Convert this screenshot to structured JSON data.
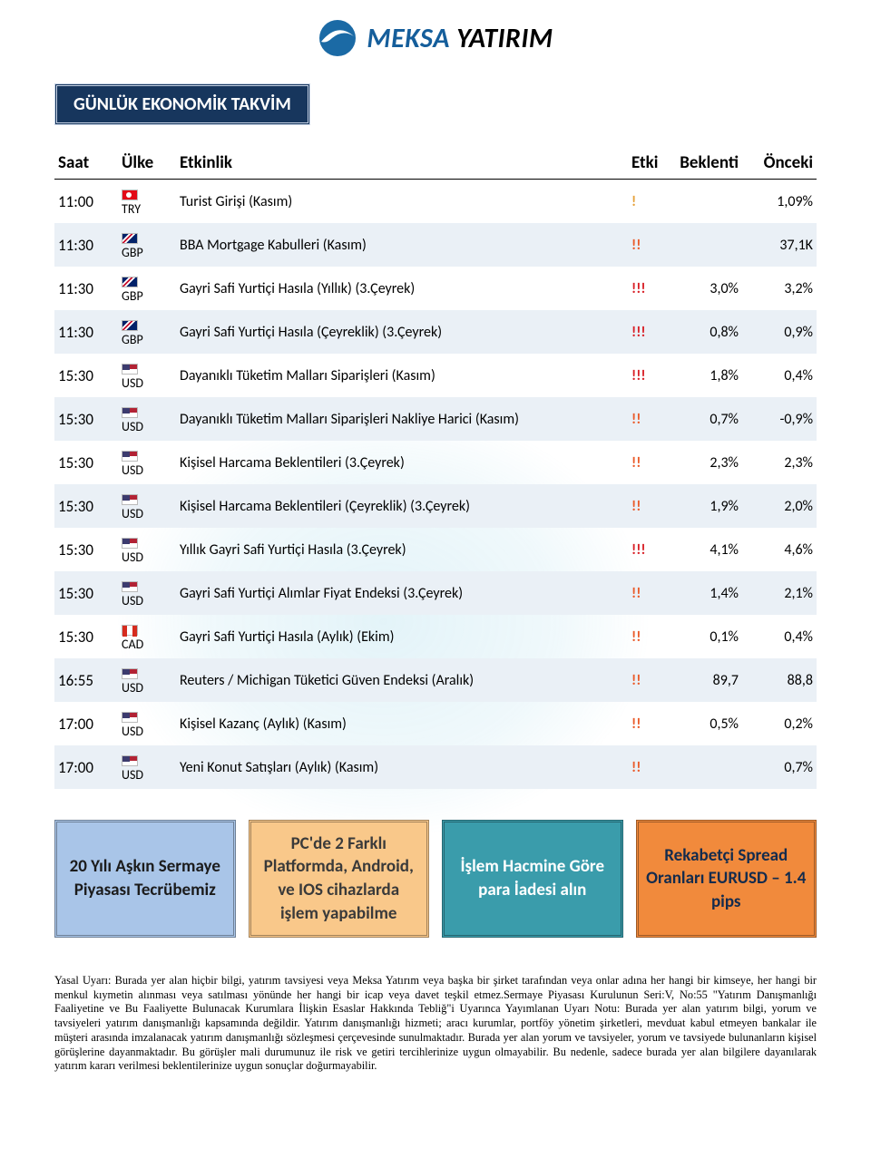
{
  "logo": {
    "brand1": "MEKSA",
    "brand2": "YATIRIM"
  },
  "title": "GÜNLÜK EKONOMİK TAKVİM",
  "columns": {
    "time": "Saat",
    "country": "Ülke",
    "event": "Etkinlik",
    "impact": "Etki",
    "forecast": "Beklenti",
    "previous": "Önceki"
  },
  "rows": [
    {
      "time": "11:00",
      "ccy": "TRY",
      "flag": "try",
      "event": "Turist Girişi (Kasım)",
      "impact": 1,
      "forecast": "",
      "previous": "1,09%"
    },
    {
      "time": "11:30",
      "ccy": "GBP",
      "flag": "gbp",
      "event": "BBA Mortgage Kabulleri (Kasım)",
      "impact": 2,
      "forecast": "",
      "previous": "37,1K"
    },
    {
      "time": "11:30",
      "ccy": "GBP",
      "flag": "gbp",
      "event": "Gayri Safi Yurtiçi Hasıla (Yıllık) (3.Çeyrek)",
      "impact": 3,
      "forecast": "3,0%",
      "previous": "3,2%"
    },
    {
      "time": "11:30",
      "ccy": "GBP",
      "flag": "gbp",
      "event": "Gayri Safi Yurtiçi Hasıla (Çeyreklik) (3.Çeyrek)",
      "impact": 3,
      "forecast": "0,8%",
      "previous": "0,9%"
    },
    {
      "time": "15:30",
      "ccy": "USD",
      "flag": "usd",
      "event": "Dayanıklı Tüketim Malları Siparişleri (Kasım)",
      "impact": 3,
      "forecast": "1,8%",
      "previous": "0,4%"
    },
    {
      "time": "15:30",
      "ccy": "USD",
      "flag": "usd",
      "event": "Dayanıklı Tüketim Malları Siparişleri Nakliye Harici (Kasım)",
      "impact": 2,
      "forecast": "0,7%",
      "previous": "-0,9%"
    },
    {
      "time": "15:30",
      "ccy": "USD",
      "flag": "usd",
      "event": "Kişisel Harcama Beklentileri (3.Çeyrek)",
      "impact": 2,
      "forecast": "2,3%",
      "previous": "2,3%"
    },
    {
      "time": "15:30",
      "ccy": "USD",
      "flag": "usd",
      "event": "Kişisel Harcama Beklentileri (Çeyreklik) (3.Çeyrek)",
      "impact": 2,
      "forecast": "1,9%",
      "previous": "2,0%"
    },
    {
      "time": "15:30",
      "ccy": "USD",
      "flag": "usd",
      "event": "Yıllık Gayri Safi Yurtiçi Hasıla (3.Çeyrek)",
      "impact": 3,
      "forecast": "4,1%",
      "previous": "4,6%"
    },
    {
      "time": "15:30",
      "ccy": "USD",
      "flag": "usd",
      "event": "Gayri Safi Yurtiçi Alımlar Fiyat Endeksi (3.Çeyrek)",
      "impact": 2,
      "forecast": "1,4%",
      "previous": "2,1%"
    },
    {
      "time": "15:30",
      "ccy": "CAD",
      "flag": "cad",
      "event": "Gayri Safi Yurtiçi Hasıla (Aylık) (Ekim)",
      "impact": 2,
      "forecast": "0,1%",
      "previous": "0,4%"
    },
    {
      "time": "16:55",
      "ccy": "USD",
      "flag": "usd",
      "event": "Reuters / Michigan Tüketici Güven Endeksi (Aralık)",
      "impact": 2,
      "forecast": "89,7",
      "previous": "88,8"
    },
    {
      "time": "17:00",
      "ccy": "USD",
      "flag": "usd",
      "event": "Kişisel Kazanç (Aylık) (Kasım)",
      "impact": 2,
      "forecast": "0,5%",
      "previous": "0,2%"
    },
    {
      "time": "17:00",
      "ccy": "USD",
      "flag": "usd",
      "event": "Yeni Konut Satışları (Aylık) (Kasım)",
      "impact": 2,
      "forecast": "",
      "previous": "0,7%"
    }
  ],
  "promos": [
    "20 Yılı Aşkın Sermaye Piyasası Tecrübemiz",
    "PC'de 2 Farklı Platformda, Android, ve IOS cihazlarda işlem yapabilme",
    "İşlem Hacmine Göre para İadesi alın",
    "Rekabetçi Spread Oranları EURUSD – 1.4 pips"
  ],
  "disclaimer": {
    "label": "Yasal Uyarı:",
    "text": "Burada yer alan hiçbir bilgi, yatırım tavsiyesi veya Meksa Yatırım veya başka bir şirket tarafından veya onlar adına her hangi bir kimseye, her hangi bir menkul kıymetin alınması veya satılması yönünde her hangi bir icap veya davet teşkil etmez.Sermaye Piyasası Kurulunun Seri:V, No:55 \"Yatırım Danışmanlığı Faaliyetine ve Bu Faaliyette Bulunacak Kurumlara İlişkin Esaslar Hakkında Tebliğ\"i Uyarınca Yayımlanan Uyarı Notu: Burada yer alan yatırım bilgi, yorum ve tavsiyeleri yatırım danışmanlığı kapsamında değildir. Yatırım danışmanlığı hizmeti; aracı kurumlar, portföy yönetim şirketleri, mevduat kabul etmeyen bankalar ile müşteri arasında imzalanacak yatırım danışmanlığı sözleşmesi çerçevesinde sunulmaktadır. Burada yer alan yorum ve tavsiyeler, yorum ve tavsiyede bulunanların kişisel görüşlerine dayanmaktadır. Bu görüşler mali durumunuz ile risk ve getiri tercihlerinize uygun olmayabilir. Bu nedenle, sadece burada yer alan bilgilere dayanılarak yatırım kararı verilmesi beklentilerinize uygun sonuçlar doğurmayabilir."
  }
}
